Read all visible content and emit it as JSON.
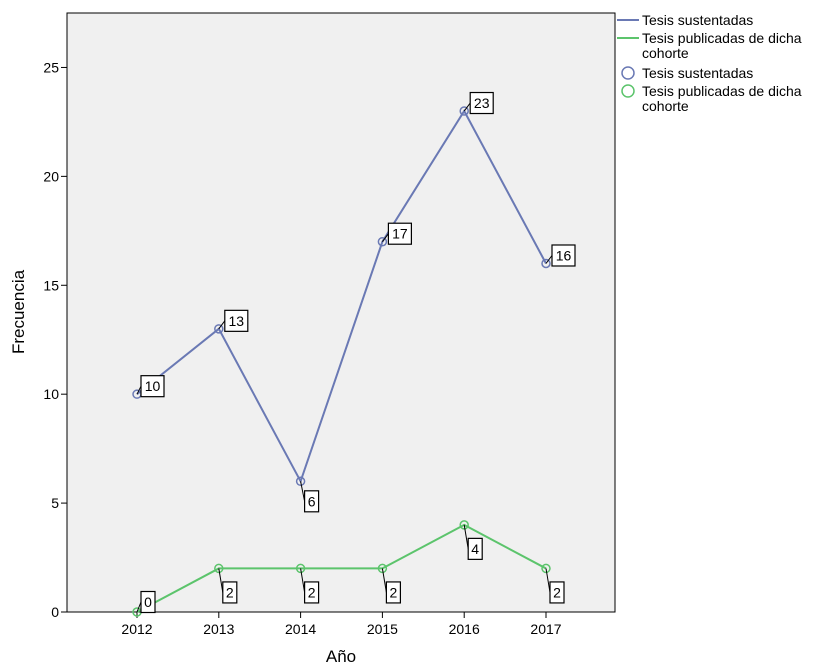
{
  "chart_data": {
    "type": "line",
    "title": "",
    "xlabel": "Año",
    "ylabel": "Frecuencia",
    "x": [
      "2012",
      "2013",
      "2014",
      "2015",
      "2016",
      "2017"
    ],
    "ylim": [
      0,
      27.5
    ],
    "yticks": [
      "0",
      "5",
      "10",
      "15",
      "20",
      "25"
    ],
    "grid": false,
    "plot_background": "#f0f0f0",
    "legend_position": "right-top",
    "series": [
      {
        "name": "Tesis sustentadas",
        "color": "#6a79b4",
        "values": [
          10,
          13,
          6,
          17,
          23,
          16
        ],
        "labels": [
          "10",
          "13",
          "6",
          "17",
          "23",
          "16"
        ]
      },
      {
        "name": "Tesis publicadas de dicha cohorte",
        "color": "#5cc46c",
        "values": [
          0,
          2,
          2,
          2,
          4,
          2
        ],
        "labels": [
          "0",
          "2",
          "2",
          "2",
          "4",
          "2"
        ]
      }
    ],
    "legend": {
      "line_entries": [
        {
          "lines": [
            "Tesis sustentadas"
          ]
        },
        {
          "lines": [
            "Tesis publicadas de dicha",
            "cohorte"
          ]
        }
      ],
      "marker_entries": [
        {
          "lines": [
            "Tesis sustentadas"
          ]
        },
        {
          "lines": [
            "Tesis publicadas de dicha",
            "cohorte"
          ]
        }
      ]
    }
  }
}
